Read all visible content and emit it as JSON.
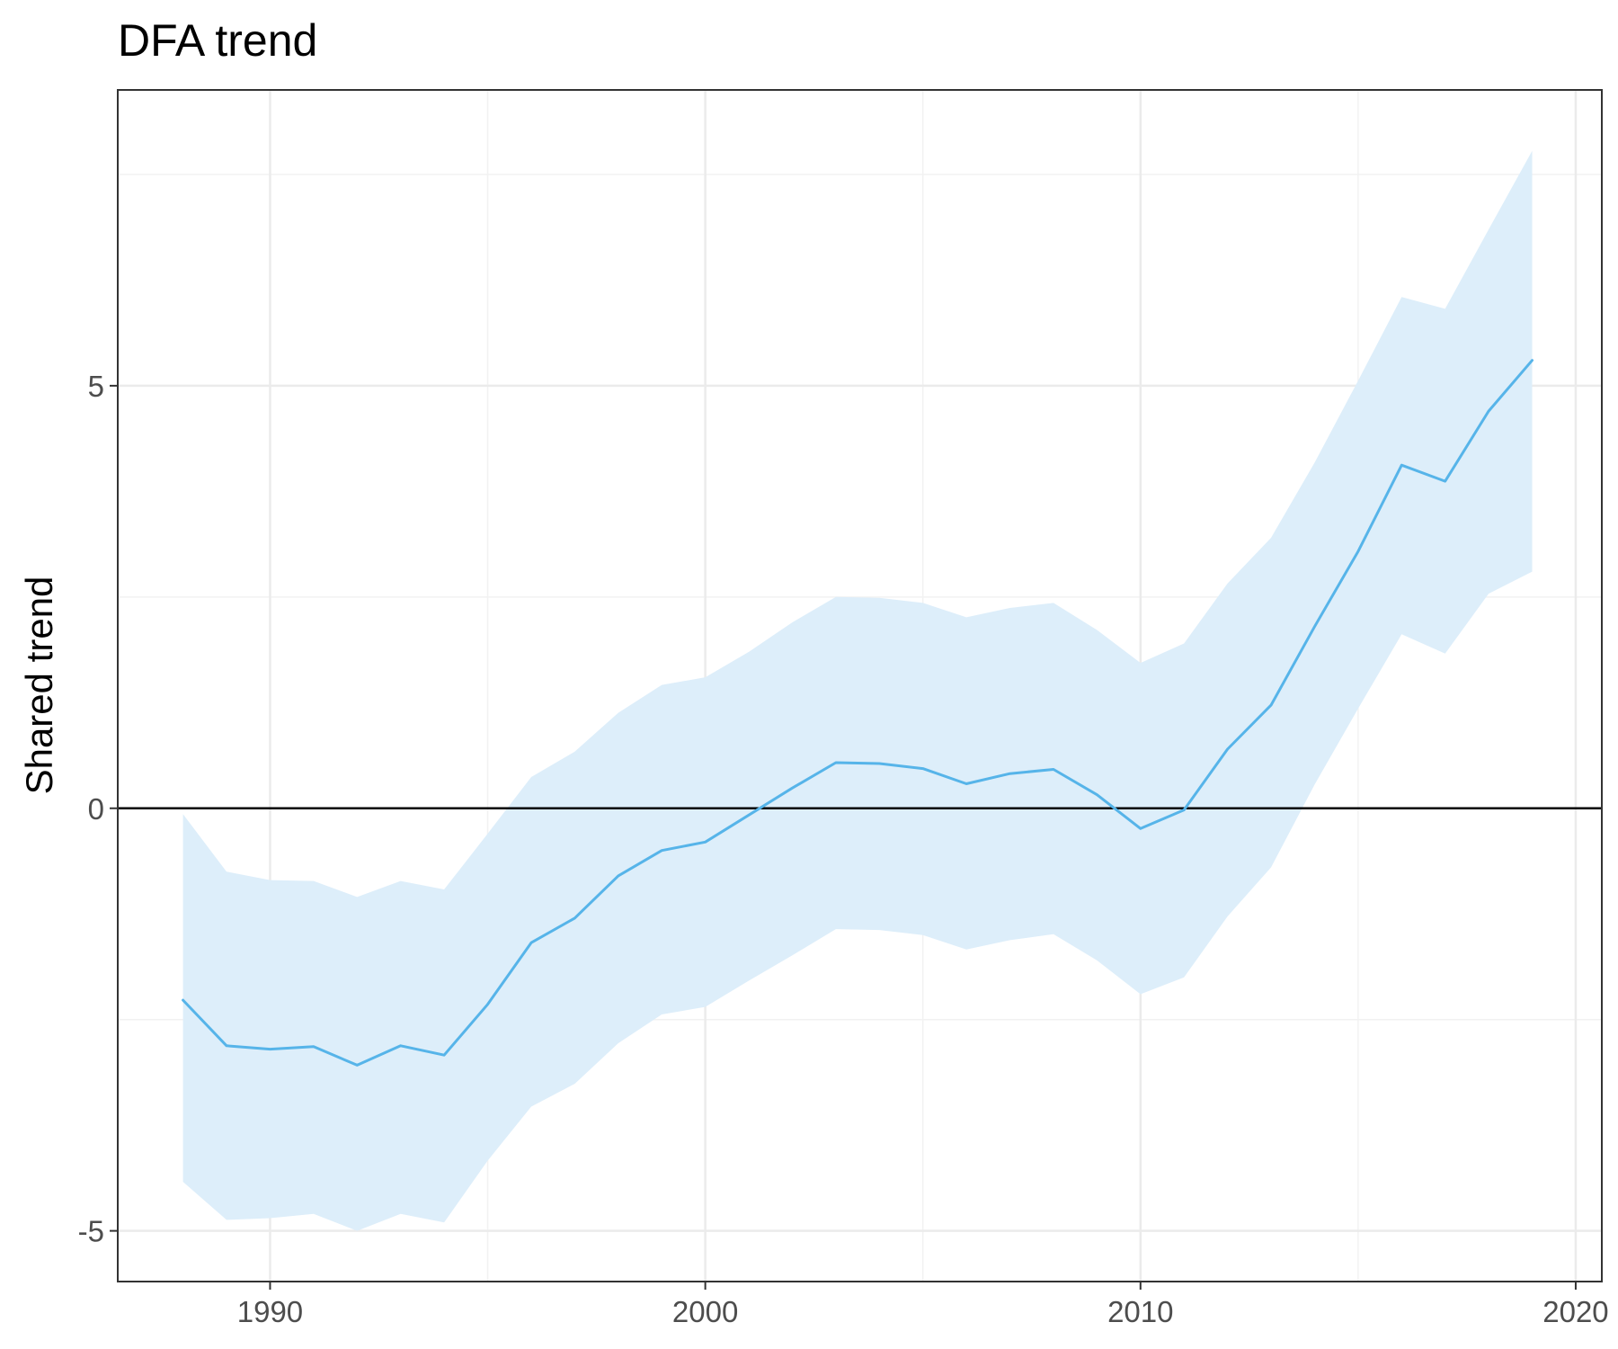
{
  "chart_data": {
    "type": "line",
    "title": "DFA trend",
    "xlabel": "",
    "ylabel": "Shared trend",
    "xlim": [
      1986.5,
      2020.6
    ],
    "ylim": [
      -5.6,
      8.5
    ],
    "x_ticks": [
      1990,
      2000,
      2010,
      2020
    ],
    "x_tick_labels": [
      "1990",
      "2000",
      "2010",
      "2020"
    ],
    "y_ticks": [
      -5,
      0,
      5
    ],
    "y_tick_labels": [
      "-5",
      "0",
      "5"
    ],
    "grid": true,
    "reference_line_y": 0,
    "colors": {
      "line": "#56B4E9",
      "ribbon": "#DDEEFA",
      "grid_major": "#EBEBEB",
      "grid_minor": "#F2F2F2",
      "axis_frame": "#333333",
      "zero_line": "#000000"
    },
    "series": [
      {
        "x": [
          1988,
          1989,
          1990,
          1991,
          1992,
          1993,
          1994,
          1995,
          1996,
          1997,
          1998,
          1999,
          2000,
          2001,
          2002,
          2003,
          2004,
          2005,
          2006,
          2007,
          2008,
          2009,
          2010,
          2011,
          2012,
          2013,
          2014,
          2015,
          2016,
          2017,
          2018,
          2019
        ],
        "values": [
          -2.27,
          -2.81,
          -2.85,
          -2.82,
          -3.04,
          -2.81,
          -2.92,
          -2.32,
          -1.59,
          -1.3,
          -0.8,
          -0.5,
          -0.4,
          -0.08,
          0.24,
          0.54,
          0.53,
          0.47,
          0.29,
          0.41,
          0.46,
          0.16,
          -0.24,
          -0.02,
          0.7,
          1.22,
          2.15,
          3.04,
          4.06,
          3.87,
          4.7,
          5.3
        ],
        "lower": [
          -4.42,
          -4.87,
          -4.85,
          -4.8,
          -5.0,
          -4.8,
          -4.9,
          -4.17,
          -3.53,
          -3.26,
          -2.78,
          -2.44,
          -2.35,
          -2.04,
          -1.74,
          -1.43,
          -1.44,
          -1.5,
          -1.67,
          -1.56,
          -1.49,
          -1.8,
          -2.2,
          -2.0,
          -1.28,
          -0.7,
          0.28,
          1.18,
          2.06,
          1.83,
          2.54,
          2.8
        ],
        "upper": [
          -0.07,
          -0.75,
          -0.85,
          -0.86,
          -1.05,
          -0.86,
          -0.96,
          -0.3,
          0.37,
          0.67,
          1.13,
          1.46,
          1.55,
          1.85,
          2.2,
          2.5,
          2.49,
          2.43,
          2.26,
          2.37,
          2.43,
          2.11,
          1.72,
          1.95,
          2.66,
          3.2,
          4.09,
          5.06,
          6.05,
          5.91,
          6.85,
          7.78
        ]
      }
    ]
  }
}
